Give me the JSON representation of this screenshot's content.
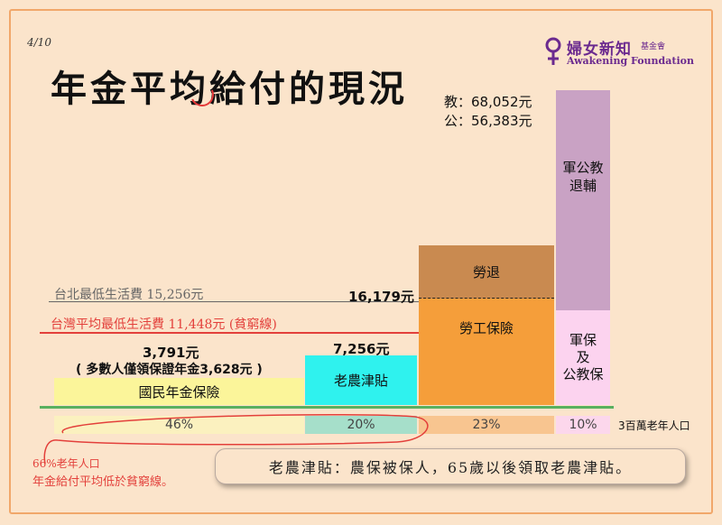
{
  "page_number": "4/10",
  "title": "年金平均給付的現況",
  "logo": {
    "name_cn": "婦女新知",
    "name_cn_small": "基金會",
    "name_en": "Awakening Foundation"
  },
  "colors": {
    "national_pension": "#fbf59a",
    "farmer": "#2ff2ee",
    "labor_insurance": "#f59e3a",
    "labor_retirement": "#c98a50",
    "military_civil": "#c9a2c4",
    "military_civil_insurance": "#fcd3ef",
    "red_line": "#e3403b",
    "green_baseline": "#59b05f"
  },
  "chart_data": {
    "type": "bar",
    "title": "年金平均給付的現況",
    "categories": [
      "國民年金保險",
      "老農津貼",
      "勞工保險",
      "軍保及公教保"
    ],
    "population_share": [
      "46%",
      "20%",
      "23%",
      "10%"
    ],
    "population_label": "3百萬老年人口",
    "bars": [
      {
        "label": "國民年金保險",
        "value": 3791,
        "value_label": "3,791元",
        "note": "( 多數人僅領保證年金3,628元 )"
      },
      {
        "label": "老農津貼",
        "value": 7256,
        "value_label": "7,256元"
      },
      {
        "label": "勞工保險",
        "stack": [
          "勞工保險",
          "勞退"
        ],
        "value": 16179,
        "value_label": "16,179元"
      },
      {
        "label": "軍保\n及\n公教保",
        "stack": [
          "軍保及公教保",
          "軍公教退輔"
        ],
        "values": {
          "教": "68,052元",
          "公": "56,383元"
        }
      }
    ],
    "stack_labels": {
      "labor_retirement": "勞退",
      "military_civil": "軍公教\n退輔"
    },
    "value_texts": {
      "teacher": "教：68,052元",
      "civil": "公：56,383元"
    },
    "reference_lines": [
      {
        "label": "台北最低生活費 15,256元",
        "value": 15256
      },
      {
        "label": "台灣平均最低生活費 11,448元 (貧窮線)",
        "value": 11448
      }
    ]
  },
  "annotation": {
    "line1": "66%老年人口",
    "line2": "年金給付平均低於貧窮線。"
  },
  "footnote": "老農津貼：農保被保人，65歲以後領取老農津貼。"
}
